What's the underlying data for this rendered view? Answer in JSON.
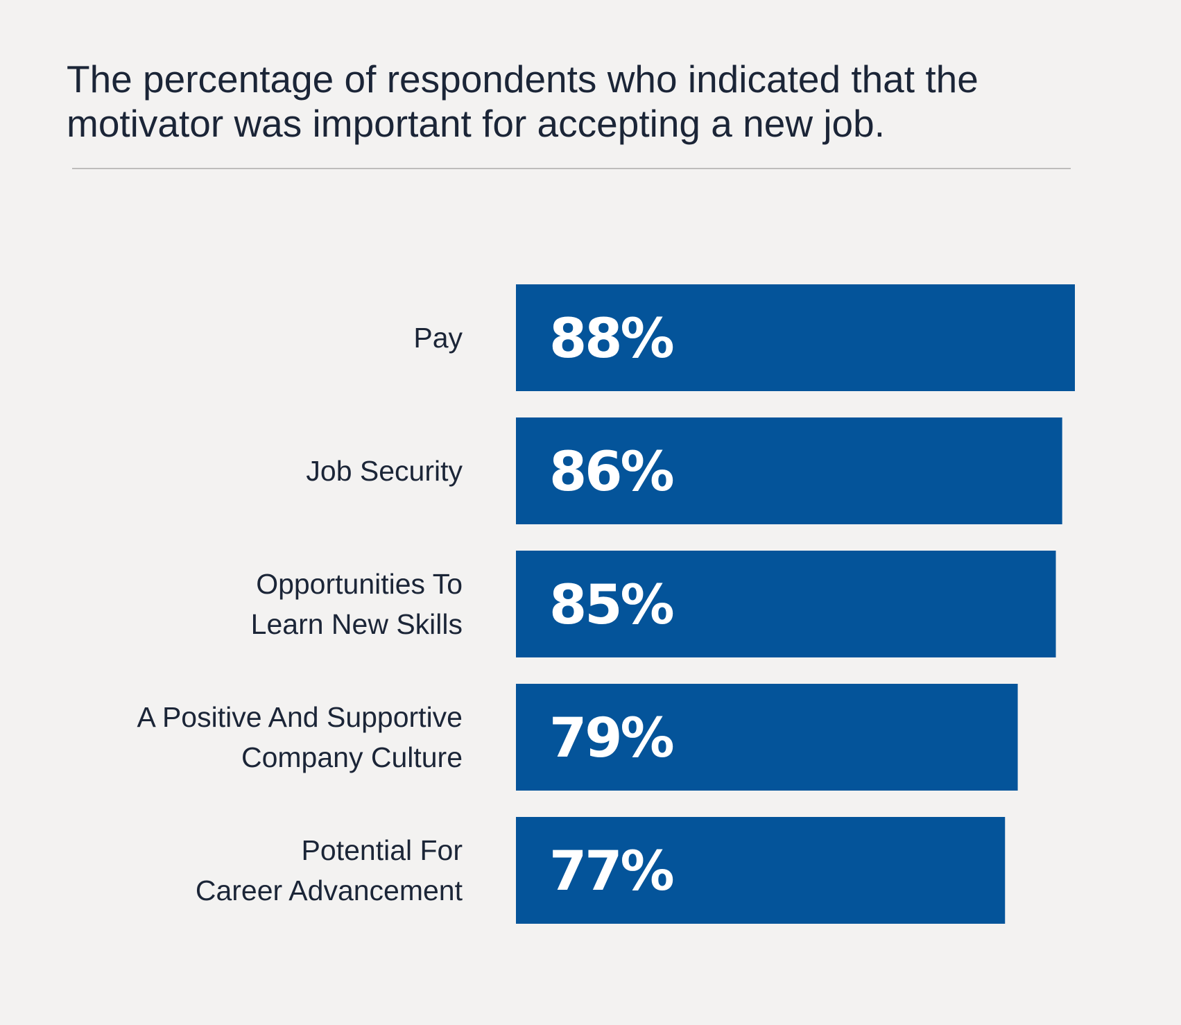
{
  "chart_data": {
    "type": "bar",
    "orientation": "horizontal",
    "title": "The percentage of respondents who indicated that the\nmotivator was important for accepting a new job.",
    "categories": [
      [
        "Pay"
      ],
      [
        "Job Security"
      ],
      [
        "Opportunities To",
        "Learn New Skills"
      ],
      [
        "A Positive And Supportive",
        "Company Culture"
      ],
      [
        "Potential For",
        "Career Advancement"
      ]
    ],
    "values": [
      88,
      86,
      85,
      79,
      77
    ],
    "value_labels": [
      "88%",
      "86%",
      "85%",
      "79%",
      "77%"
    ],
    "unit": "%",
    "xlim": [
      0,
      88
    ],
    "grid": false,
    "legend": "none",
    "bar_color": "#04549a",
    "value_label_color": "#ffffff",
    "text_color": "#1b2537",
    "background_color": "#f3f2f1",
    "divider_color": "#bdbcbb"
  }
}
